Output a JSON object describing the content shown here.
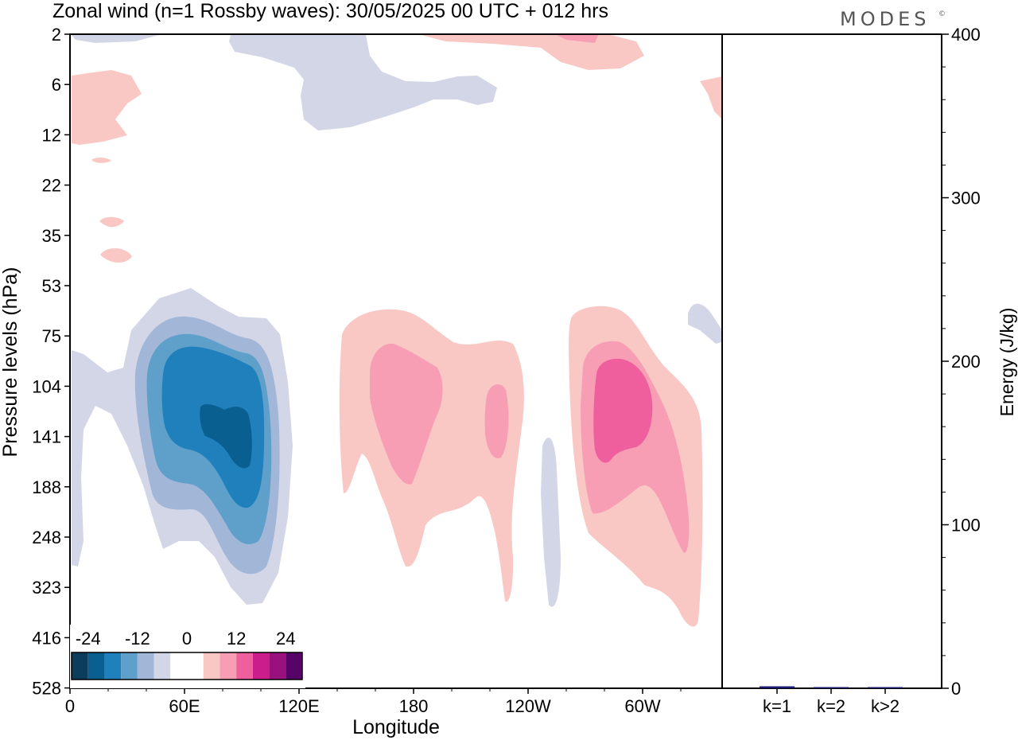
{
  "title": "Zonal wind (n=1 Rossby waves):  30/05/2025  00 UTC  + 012 hrs",
  "logo": "MODES",
  "logo_mark": "©",
  "chart_data": [
    {
      "type": "heatmap",
      "title": "Zonal wind (n=1 Rossby waves):  30/05/2025  00 UTC  + 012 hrs",
      "xlabel": "Longitude",
      "ylabel": "Pressure levels (hPa)",
      "x_ticks": [
        "0",
        "60E",
        "120E",
        "180",
        "120W",
        "60W"
      ],
      "y_ticks": [
        "2",
        "6",
        "12",
        "22",
        "35",
        "53",
        "75",
        "104",
        "141",
        "188",
        "248",
        "323",
        "416",
        "528"
      ],
      "colorbar": {
        "labels": [
          "-24",
          "-12",
          "0",
          "12",
          "24"
        ],
        "colors": [
          "#0d3d5c",
          "#0a5f91",
          "#1f80bb",
          "#5fa0cb",
          "#a2b7d8",
          "#d3d6e6",
          "#ffffff",
          "#ffffff",
          "#f9c8c4",
          "#f79eb5",
          "#ef5f9e",
          "#cb1d8b",
          "#98117d",
          "#570469"
        ]
      },
      "features": [
        {
          "name": "negative anomaly",
          "lon_center": 80,
          "pressure_center": 141,
          "min_value": -21
        },
        {
          "name": "positive anomaly",
          "lon_center": 190,
          "pressure_center": 120,
          "max_value": 9
        },
        {
          "name": "positive anomaly",
          "lon_center": 235,
          "pressure_center": 130,
          "max_value": 9
        },
        {
          "name": "positive anomaly",
          "lon_center": 300,
          "pressure_center": 130,
          "max_value": 12
        }
      ]
    },
    {
      "type": "bar",
      "categories": [
        "k=1",
        "k=2",
        "k>2"
      ],
      "values": [
        1.2,
        0.6,
        0.5
      ],
      "ylabel": "Energy (J/kg)",
      "ylim": [
        0,
        400
      ],
      "y_ticks": [
        "0",
        "100",
        "200",
        "300",
        "400"
      ],
      "bar_color": "#1a1a6e"
    }
  ]
}
